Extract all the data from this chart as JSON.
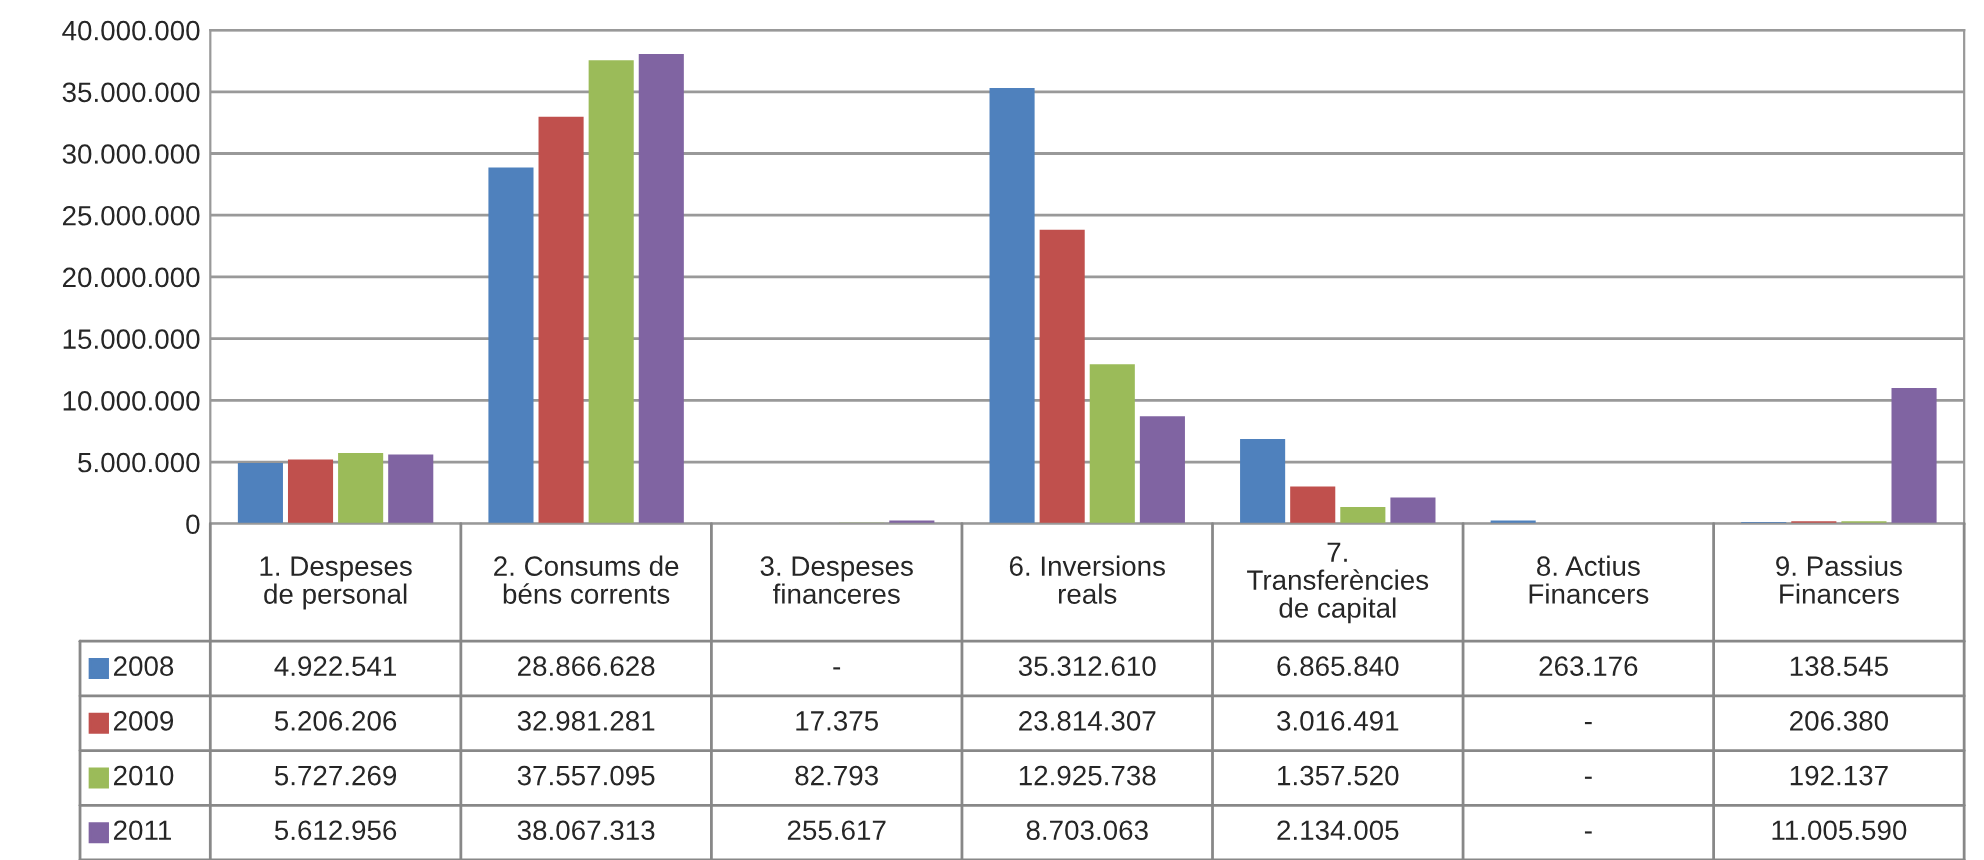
{
  "chart_data": {
    "type": "bar",
    "categories": [
      "1. Despeses\nde personal",
      "2. Consums de\nbéns corrents",
      "3. Despeses\nfinanceres",
      "6. Inversions\nreals",
      "7.\nTransferències\nde capital",
      "8. Actius\nFinancers",
      "9. Passius\nFinancers"
    ],
    "series": [
      {
        "name": "2008",
        "color": "#4f81bd",
        "values": [
          4922541,
          28866628,
          null,
          35312610,
          6865840,
          263176,
          138545
        ],
        "value_labels": [
          "4.922.541",
          "28.866.628",
          "-",
          "35.312.610",
          "6.865.840",
          "263.176",
          "138.545"
        ]
      },
      {
        "name": "2009",
        "color": "#c0504d",
        "values": [
          5206206,
          32981281,
          17375,
          23814307,
          3016491,
          null,
          206380
        ],
        "value_labels": [
          "5.206.206",
          "32.981.281",
          "17.375",
          "23.814.307",
          "3.016.491",
          "-",
          "206.380"
        ]
      },
      {
        "name": "2010",
        "color": "#9bbb59",
        "values": [
          5727269,
          37557095,
          82793,
          12925738,
          1357520,
          null,
          192137
        ],
        "value_labels": [
          "5.727.269",
          "37.557.095",
          "82.793",
          "12.925.738",
          "1.357.520",
          "-",
          "192.137"
        ]
      },
      {
        "name": "2011",
        "color": "#8064a2",
        "values": [
          5612956,
          38067313,
          255617,
          8703063,
          2134005,
          null,
          11005590
        ],
        "value_labels": [
          "5.612.956",
          "38.067.313",
          "255.617",
          "8.703.063",
          "2.134.005",
          "-",
          "11.005.590"
        ]
      }
    ],
    "ylim": [
      0,
      40000000
    ],
    "yticks": [
      0,
      {
        "value": 5000000,
        "label": "5.000.000"
      },
      {
        "value": 10000000,
        "label": "10.000.000"
      },
      {
        "value": 15000000,
        "label": "15.000.000"
      },
      {
        "value": 20000000,
        "label": "20.000.000"
      },
      {
        "value": 25000000,
        "label": "25.000.000"
      },
      {
        "value": 30000000,
        "label": "30.000.000"
      },
      {
        "value": 35000000,
        "label": "35.000.000"
      },
      {
        "value": 40000000,
        "label": "40.000.000"
      }
    ],
    "grid": "y",
    "legend": "bottom"
  }
}
